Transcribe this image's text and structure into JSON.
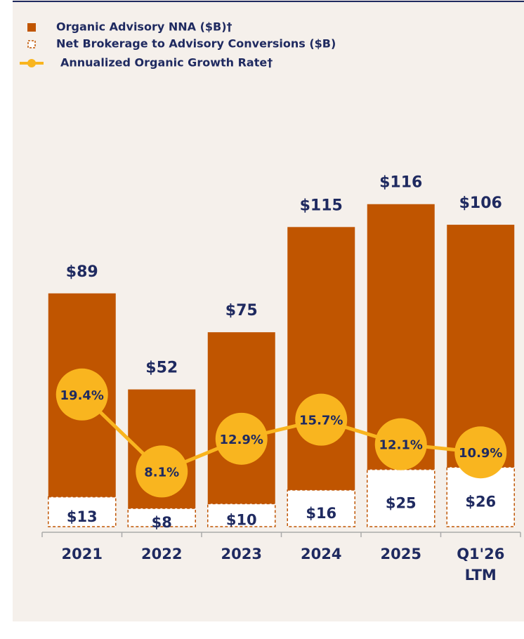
{
  "chart_data": {
    "type": "bar",
    "categories": [
      "2021",
      "2022",
      "2023",
      "2024",
      "2025",
      "Q1'26 LTM"
    ],
    "series": [
      {
        "name": "Net Brokerage to Advisory Conversions ($B)",
        "color": "#c05500",
        "values": [
          13,
          8,
          10,
          16,
          25,
          26
        ],
        "value_labels": [
          "$13",
          "$8",
          "$10",
          "$16",
          "$25",
          "$26"
        ],
        "style": "dashed"
      },
      {
        "name": "Organic Advisory NNA ($B)†",
        "color": "#c05500",
        "values": [
          89,
          52,
          75,
          115,
          116,
          106
        ],
        "value_labels": [
          "$89",
          "$52",
          "$75",
          "$115",
          "$116",
          "$106"
        ]
      },
      {
        "name": "Annualized Organic Growth Rate†",
        "color": "#f9b51f",
        "type": "line",
        "axis": "y2",
        "values": [
          19.4,
          8.1,
          12.9,
          15.7,
          12.1,
          10.9
        ],
        "value_labels": [
          "19.4%",
          "8.1%",
          "12.9%",
          "15.7%",
          "12.1%",
          "10.9%"
        ]
      }
    ],
    "stacked": true,
    "ylim": [
      0,
      140
    ],
    "y2lim": [
      0,
      47
    ]
  }
}
